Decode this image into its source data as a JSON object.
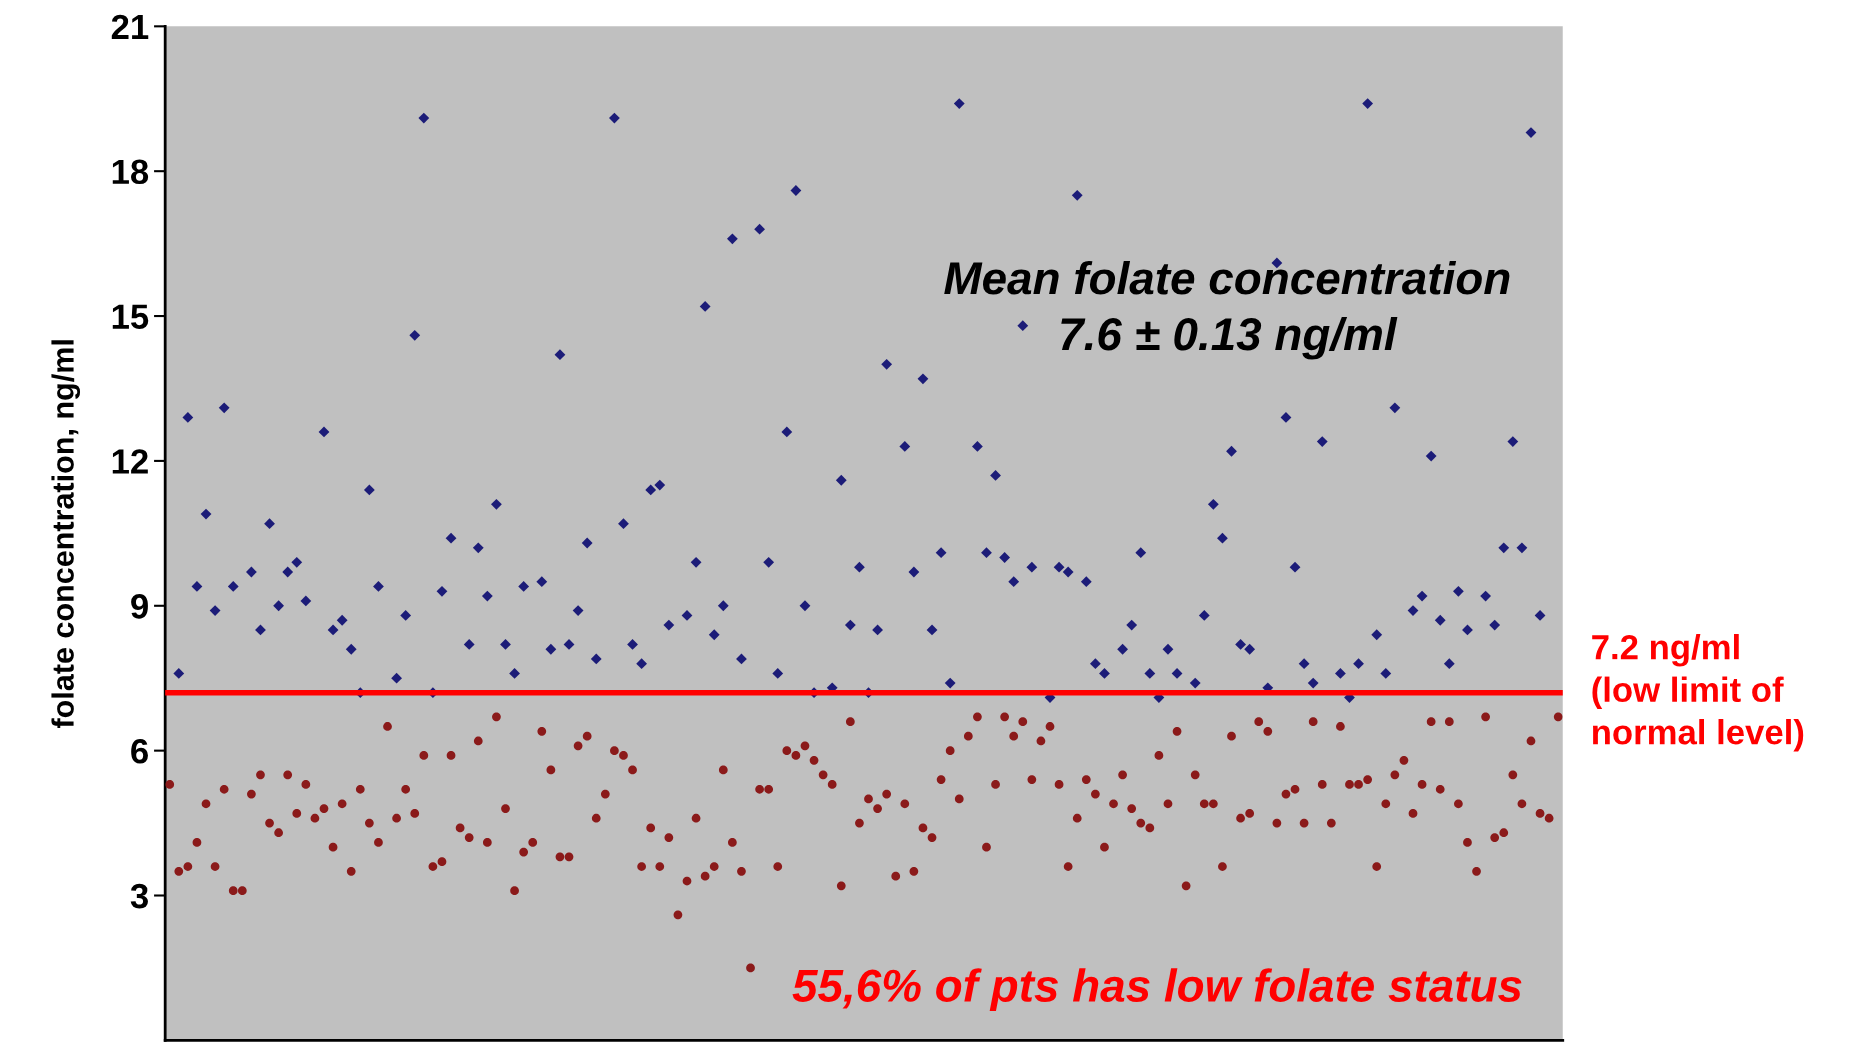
{
  "chart_data": {
    "type": "scatter",
    "ylabel": "folate concentration, ng/ml",
    "ylim": [
      0,
      21
    ],
    "yticks": [
      3,
      6,
      9,
      12,
      15,
      18,
      21
    ],
    "tick_labels": "y",
    "grid": false,
    "categories": [
      null,
      null,
      null,
      null,
      null,
      null,
      null,
      null,
      null,
      null,
      null,
      null,
      null,
      null,
      null,
      null,
      null,
      null,
      null,
      null,
      null,
      null,
      null,
      null,
      null,
      null,
      null,
      null,
      null,
      null,
      null,
      null,
      null,
      null,
      null,
      null,
      null,
      null,
      null,
      null,
      null,
      null,
      null,
      null,
      null,
      null,
      null,
      null,
      null,
      null,
      null,
      null,
      null,
      null,
      null,
      null,
      null,
      null,
      null,
      null,
      null,
      null,
      null,
      null,
      null,
      null,
      null,
      null,
      null,
      null,
      null,
      null,
      null,
      null,
      null,
      null,
      null,
      null,
      null,
      null,
      null,
      null,
      null,
      null,
      null,
      null,
      null,
      null,
      null,
      null,
      null,
      null,
      null,
      null,
      null,
      null,
      null,
      null,
      null,
      null,
      null,
      null,
      null,
      null,
      null,
      null,
      null,
      null,
      null,
      null,
      null,
      null,
      null,
      null,
      null,
      null,
      null,
      null,
      null,
      null,
      null,
      null,
      null,
      null,
      null,
      null,
      null,
      null,
      null,
      null,
      null,
      null,
      null,
      null,
      null,
      null,
      null,
      null,
      null,
      null,
      null,
      null,
      null,
      null,
      null,
      null,
      null,
      null,
      null,
      null,
      null,
      null,
      null,
      null
    ],
    "series": [
      {
        "color": "#1c1c78",
        "marker": "diamond",
        "values": [
          null,
          7.6,
          12.9,
          9.4,
          10.9,
          8.9,
          13.1,
          9.4,
          null,
          9.7,
          8.5,
          10.7,
          9.0,
          9.7,
          9.9,
          9.1,
          null,
          12.6,
          8.5,
          8.7,
          8.1,
          7.2,
          11.4,
          9.4,
          null,
          7.5,
          8.8,
          14.6,
          19.1,
          7.2,
          9.3,
          10.4,
          null,
          8.2,
          10.2,
          9.2,
          11.1,
          8.2,
          7.6,
          9.4,
          null,
          9.5,
          8.1,
          14.2,
          8.2,
          8.9,
          10.3,
          7.9,
          null,
          19.1,
          10.7,
          8.2,
          7.8,
          11.4,
          11.5,
          8.6,
          null,
          8.8,
          9.9,
          15.2,
          8.4,
          9.0,
          16.6,
          7.9,
          null,
          16.8,
          9.9,
          7.6,
          12.6,
          17.6,
          9.0,
          7.2,
          null,
          7.3,
          11.6,
          8.6,
          9.8,
          7.2,
          8.5,
          14.0,
          null,
          12.3,
          9.7,
          13.7,
          8.5,
          10.1,
          7.4,
          19.4,
          null,
          12.3,
          10.1,
          11.7,
          10.0,
          9.5,
          14.8,
          9.8,
          null,
          7.1,
          9.8,
          9.7,
          17.5,
          9.5,
          7.8,
          7.6,
          null,
          8.1,
          8.6,
          10.1,
          7.6,
          7.1,
          8.1,
          7.6,
          null,
          7.4,
          8.8,
          11.1,
          10.4,
          12.2,
          8.2,
          8.1,
          null,
          7.3,
          16.1,
          12.9,
          9.8,
          7.8,
          7.4,
          12.4,
          null,
          7.6,
          7.1,
          7.8,
          19.4,
          8.4,
          7.6,
          13.1,
          null,
          8.9,
          9.2,
          12.1,
          8.7,
          7.8,
          9.3,
          8.5,
          null,
          9.2,
          8.6,
          10.2,
          12.4,
          10.2,
          18.8,
          8.8,
          null,
          null
        ]
      },
      {
        "color": "#8b1a1a",
        "marker": "circle",
        "values": [
          5.3,
          3.5,
          3.6,
          4.1,
          4.9,
          3.6,
          5.2,
          3.1,
          3.1,
          5.1,
          5.5,
          4.5,
          4.3,
          5.5,
          4.7,
          5.3,
          4.6,
          4.8,
          4.0,
          4.9,
          3.5,
          5.2,
          4.5,
          4.1,
          6.5,
          4.6,
          5.2,
          4.7,
          5.9,
          3.6,
          3.7,
          5.9,
          4.4,
          4.2,
          6.2,
          4.1,
          6.7,
          4.8,
          3.1,
          3.9,
          4.1,
          6.4,
          5.6,
          3.8,
          3.8,
          6.1,
          6.3,
          4.6,
          5.1,
          6.0,
          5.9,
          5.6,
          3.6,
          4.4,
          3.6,
          4.2,
          2.6,
          3.3,
          4.6,
          3.4,
          3.6,
          5.6,
          4.1,
          3.5,
          1.5,
          5.2,
          5.2,
          3.6,
          6.0,
          5.9,
          6.1,
          5.8,
          5.5,
          5.3,
          3.2,
          6.6,
          4.5,
          5.0,
          4.8,
          5.1,
          3.4,
          4.9,
          3.5,
          4.4,
          4.2,
          5.4,
          6.0,
          5.0,
          6.3,
          6.7,
          4.0,
          5.3,
          6.7,
          6.3,
          6.6,
          5.4,
          6.2,
          6.5,
          5.3,
          3.6,
          4.6,
          5.4,
          5.1,
          4.0,
          4.9,
          5.5,
          4.8,
          4.5,
          4.4,
          5.9,
          4.9,
          6.4,
          3.2,
          5.5,
          4.9,
          4.9,
          3.6,
          6.3,
          4.6,
          4.7,
          6.6,
          6.4,
          4.5,
          5.1,
          5.2,
          4.5,
          6.6,
          5.3,
          4.5,
          6.5,
          5.3,
          5.3,
          5.4,
          3.6,
          4.9,
          5.5,
          5.8,
          4.7,
          5.3,
          6.6,
          5.2,
          6.6,
          4.9,
          4.1,
          3.5,
          6.7,
          4.2,
          4.3,
          5.5,
          4.9,
          6.2,
          4.7,
          4.6,
          6.7
        ]
      }
    ],
    "ref_lines": [
      {
        "axis": "y",
        "value": 7.2,
        "label": "7.2 ng/ml\n(low limit of\nnormal level)",
        "color": "#ff0000",
        "line_style": "solid"
      }
    ],
    "annotations": [
      "Mean folate concentration\n7.6 ± 0.13 ng/ml",
      "55,6% of pts has low folate status"
    ]
  }
}
